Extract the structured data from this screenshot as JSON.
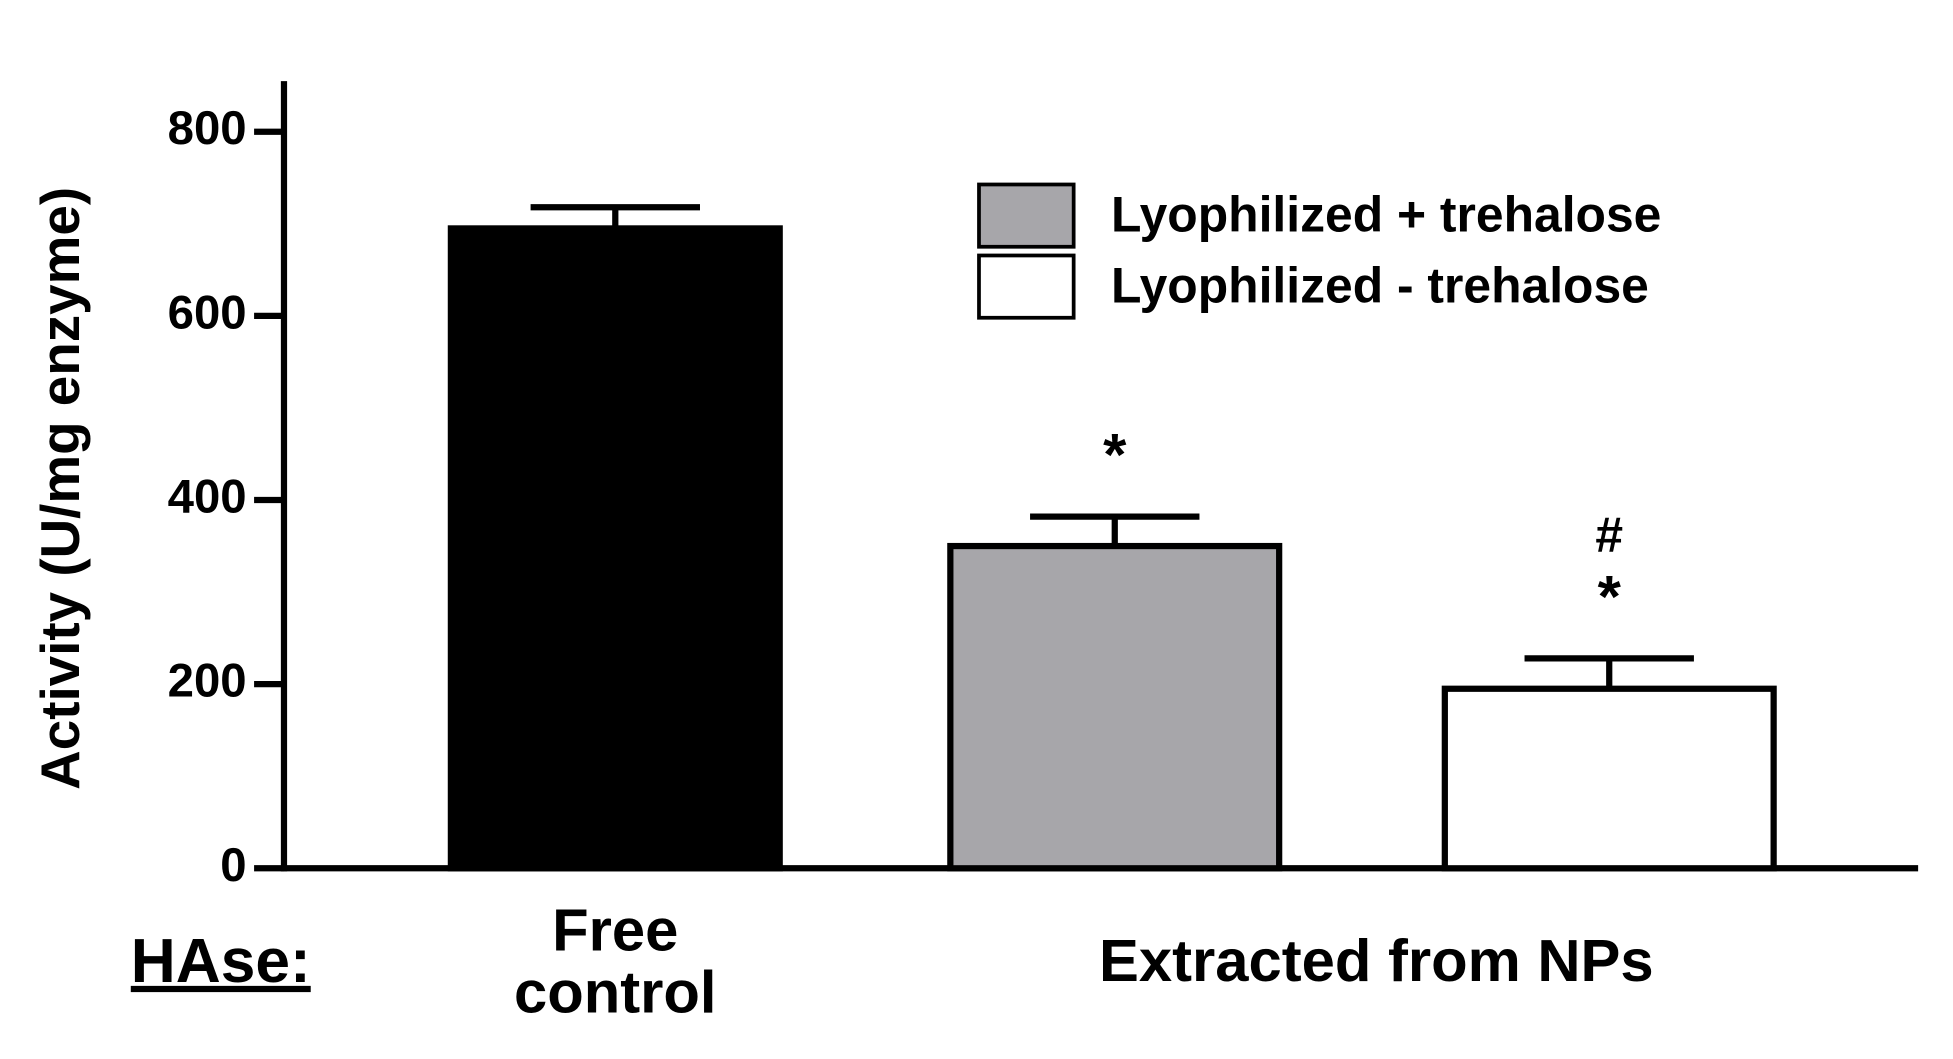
{
  "chart_data": {
    "type": "bar",
    "y_label": "Activity (U/mg enzyme)",
    "x_prefix": "HAse:",
    "categories": [
      "Free\ncontrol",
      null,
      null
    ],
    "group_label": "Extracted from NPs",
    "values": [
      695,
      350,
      195
    ],
    "errors": [
      23,
      32,
      33
    ],
    "colors": [
      "#000000",
      "#a7a6aa",
      "#ffffff"
    ],
    "markers": [
      null,
      [
        "*"
      ],
      [
        "#",
        "*"
      ]
    ],
    "legend": [
      {
        "name": "Lyophilized + trehalose",
        "color": "#a7a6aa"
      },
      {
        "name": "Lyophilized - trehalose",
        "color": "#ffffff"
      }
    ],
    "legend_position": "upper right",
    "ylim": [
      0,
      855
    ],
    "yticks": [
      0,
      200,
      400,
      600,
      800
    ],
    "grid": false
  }
}
